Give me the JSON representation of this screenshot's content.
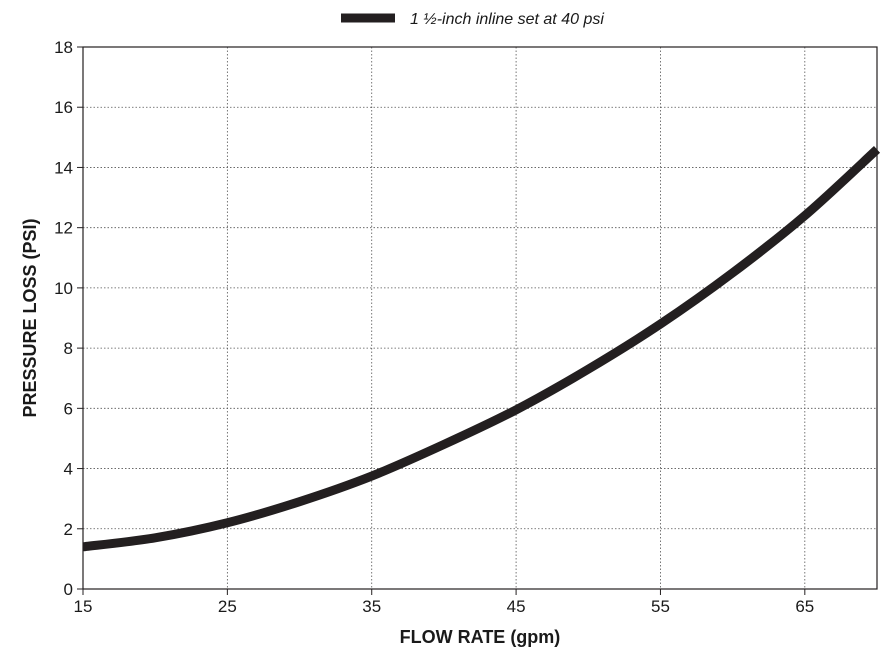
{
  "chart_data": {
    "type": "line",
    "title": "",
    "xlabel": "FLOW RATE (gpm)",
    "ylabel": "PRESSURE LOSS (PSI)",
    "xlim": [
      15,
      70
    ],
    "ylim": [
      0,
      18
    ],
    "x_ticks": [
      15,
      25,
      35,
      45,
      55,
      65
    ],
    "y_ticks": [
      0,
      2,
      4,
      6,
      8,
      10,
      12,
      14,
      16,
      18
    ],
    "grid": true,
    "legend_position": "top-center",
    "series": [
      {
        "name": "1 ½-inch inline set at 40 psi",
        "color": "#231f20",
        "x": [
          15,
          20,
          25,
          30,
          35,
          40,
          45,
          50,
          55,
          60,
          65,
          70
        ],
        "y": [
          1.4,
          1.7,
          2.2,
          2.9,
          3.75,
          4.8,
          5.95,
          7.3,
          8.8,
          10.5,
          12.4,
          14.6
        ]
      }
    ]
  }
}
